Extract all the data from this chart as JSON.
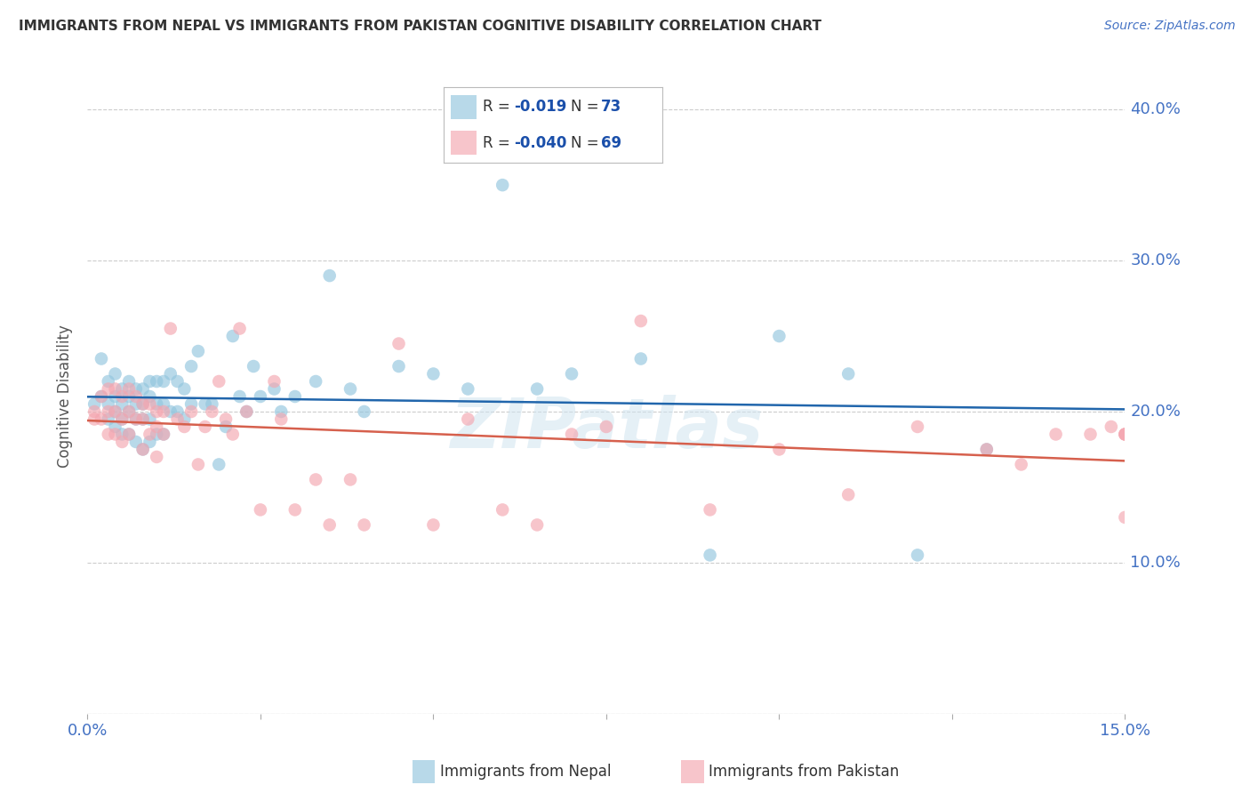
{
  "title": "IMMIGRANTS FROM NEPAL VS IMMIGRANTS FROM PAKISTAN COGNITIVE DISABILITY CORRELATION CHART",
  "source": "Source: ZipAtlas.com",
  "ylabel": "Cognitive Disability",
  "xlim": [
    0.0,
    0.15
  ],
  "ylim": [
    0.0,
    0.42
  ],
  "nepal_R": "-0.019",
  "nepal_N": "73",
  "pakistan_R": "-0.040",
  "pakistan_N": "69",
  "nepal_color": "#92c5de",
  "pakistan_color": "#f4a6b0",
  "trendline_nepal_color": "#2166ac",
  "trendline_pakistan_color": "#d6604d",
  "watermark_text": "ZIPatlas",
  "nepal_x": [
    0.001,
    0.002,
    0.002,
    0.003,
    0.003,
    0.003,
    0.004,
    0.004,
    0.004,
    0.004,
    0.005,
    0.005,
    0.005,
    0.005,
    0.006,
    0.006,
    0.006,
    0.006,
    0.007,
    0.007,
    0.007,
    0.007,
    0.008,
    0.008,
    0.008,
    0.008,
    0.009,
    0.009,
    0.009,
    0.009,
    0.01,
    0.01,
    0.01,
    0.011,
    0.011,
    0.011,
    0.012,
    0.012,
    0.013,
    0.013,
    0.014,
    0.014,
    0.015,
    0.015,
    0.016,
    0.017,
    0.018,
    0.019,
    0.02,
    0.021,
    0.022,
    0.023,
    0.024,
    0.025,
    0.027,
    0.028,
    0.03,
    0.033,
    0.035,
    0.038,
    0.04,
    0.045,
    0.05,
    0.055,
    0.06,
    0.065,
    0.07,
    0.08,
    0.09,
    0.1,
    0.11,
    0.12,
    0.13
  ],
  "nepal_y": [
    0.205,
    0.235,
    0.21,
    0.22,
    0.205,
    0.195,
    0.225,
    0.21,
    0.2,
    0.19,
    0.215,
    0.205,
    0.195,
    0.185,
    0.22,
    0.21,
    0.2,
    0.185,
    0.215,
    0.205,
    0.195,
    0.18,
    0.215,
    0.205,
    0.195,
    0.175,
    0.22,
    0.21,
    0.195,
    0.18,
    0.22,
    0.205,
    0.185,
    0.22,
    0.205,
    0.185,
    0.225,
    0.2,
    0.22,
    0.2,
    0.215,
    0.195,
    0.23,
    0.205,
    0.24,
    0.205,
    0.205,
    0.165,
    0.19,
    0.25,
    0.21,
    0.2,
    0.23,
    0.21,
    0.215,
    0.2,
    0.21,
    0.22,
    0.29,
    0.215,
    0.2,
    0.23,
    0.225,
    0.215,
    0.35,
    0.215,
    0.225,
    0.235,
    0.105,
    0.25,
    0.225,
    0.105,
    0.175
  ],
  "pakistan_x": [
    0.001,
    0.001,
    0.002,
    0.002,
    0.003,
    0.003,
    0.003,
    0.004,
    0.004,
    0.004,
    0.005,
    0.005,
    0.005,
    0.006,
    0.006,
    0.006,
    0.007,
    0.007,
    0.008,
    0.008,
    0.008,
    0.009,
    0.009,
    0.01,
    0.01,
    0.01,
    0.011,
    0.011,
    0.012,
    0.013,
    0.014,
    0.015,
    0.016,
    0.017,
    0.018,
    0.019,
    0.02,
    0.021,
    0.022,
    0.023,
    0.025,
    0.027,
    0.028,
    0.03,
    0.033,
    0.035,
    0.038,
    0.04,
    0.045,
    0.05,
    0.055,
    0.06,
    0.065,
    0.07,
    0.075,
    0.08,
    0.09,
    0.1,
    0.11,
    0.12,
    0.13,
    0.135,
    0.14,
    0.145,
    0.148,
    0.15,
    0.15,
    0.15,
    0.15
  ],
  "pakistan_y": [
    0.2,
    0.195,
    0.21,
    0.195,
    0.215,
    0.2,
    0.185,
    0.215,
    0.2,
    0.185,
    0.21,
    0.195,
    0.18,
    0.215,
    0.2,
    0.185,
    0.21,
    0.195,
    0.205,
    0.195,
    0.175,
    0.205,
    0.185,
    0.2,
    0.19,
    0.17,
    0.2,
    0.185,
    0.255,
    0.195,
    0.19,
    0.2,
    0.165,
    0.19,
    0.2,
    0.22,
    0.195,
    0.185,
    0.255,
    0.2,
    0.135,
    0.22,
    0.195,
    0.135,
    0.155,
    0.125,
    0.155,
    0.125,
    0.245,
    0.125,
    0.195,
    0.135,
    0.125,
    0.185,
    0.19,
    0.26,
    0.135,
    0.175,
    0.145,
    0.19,
    0.175,
    0.165,
    0.185,
    0.185,
    0.19,
    0.185,
    0.185,
    0.13,
    0.185
  ]
}
